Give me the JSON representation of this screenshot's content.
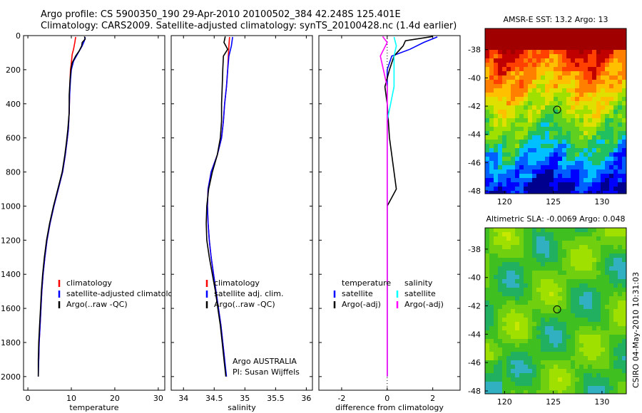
{
  "header": {
    "title_line1": "Argo profile: CS 5900350_190 29-Apr-2010 20100502_384 42.248S 125.401E",
    "title_line2": "Climatology: CARS2009. Satellite-adjusted climatology: synTS_20100428.nc (1.4d earlier)"
  },
  "side_label": "CSIRO 04-May-2010 10:31:03",
  "colors": {
    "climatology": "#ff0000",
    "satellite": "#0000ff",
    "argo": "#000000",
    "salinity_satellite": "#00ffff",
    "salinity_argo": "#ff00ff"
  },
  "chart_data": [
    {
      "type": "line",
      "xlabel": "temperature",
      "ylabel": "",
      "xlim": [
        -1,
        31.5
      ],
      "ylim": [
        2080,
        0
      ],
      "xticks": [
        0,
        10,
        20,
        30
      ],
      "yticks": [
        0,
        200,
        400,
        600,
        800,
        1000,
        1200,
        1400,
        1600,
        1800,
        2000
      ],
      "legend": {
        "position": "lower-right",
        "entries": [
          "climatology",
          "satellite-adjusted climatology",
          "Argo(..raw -QC)"
        ]
      },
      "series": [
        {
          "name": "climatology",
          "color": "#ff0000",
          "points": [
            [
              11.0,
              8
            ],
            [
              10.8,
              40
            ],
            [
              10.5,
              80
            ],
            [
              10.2,
              110
            ],
            [
              10.0,
              160
            ],
            [
              9.8,
              200
            ],
            [
              9.7,
              260
            ],
            [
              9.6,
              350
            ],
            [
              9.5,
              450
            ],
            [
              9.3,
              550
            ],
            [
              9.0,
              620
            ],
            [
              8.6,
              700
            ],
            [
              8.0,
              800
            ],
            [
              7.0,
              900
            ],
            [
              6.0,
              1000
            ],
            [
              5.1,
              1100
            ],
            [
              4.4,
              1200
            ],
            [
              3.9,
              1300
            ],
            [
              3.5,
              1400
            ],
            [
              3.2,
              1500
            ],
            [
              3.0,
              1600
            ],
            [
              2.8,
              1700
            ],
            [
              2.6,
              1800
            ],
            [
              2.5,
              1900
            ]
          ]
        },
        {
          "name": "satellite-adjusted climatology",
          "color": "#0000ff",
          "points": [
            [
              13.2,
              8
            ],
            [
              13.0,
              30
            ],
            [
              12.5,
              60
            ],
            [
              11.6,
              100
            ],
            [
              10.5,
              150
            ],
            [
              10.0,
              200
            ],
            [
              9.8,
              260
            ],
            [
              9.6,
              350
            ],
            [
              9.5,
              450
            ],
            [
              9.3,
              550
            ],
            [
              9.0,
              620
            ],
            [
              8.6,
              700
            ],
            [
              8.0,
              800
            ],
            [
              7.0,
              900
            ],
            [
              6.0,
              1000
            ],
            [
              5.1,
              1100
            ],
            [
              4.4,
              1200
            ],
            [
              3.9,
              1300
            ],
            [
              3.5,
              1400
            ],
            [
              3.2,
              1500
            ],
            [
              3.0,
              1600
            ],
            [
              2.8,
              1700
            ],
            [
              2.6,
              1800
            ],
            [
              2.5,
              1900
            ],
            [
              2.4,
              2000
            ]
          ]
        },
        {
          "name": "Argo(..raw -QC)",
          "color": "#000000",
          "points": [
            [
              13.0,
              5
            ],
            [
              13.2,
              20
            ],
            [
              12.5,
              40
            ],
            [
              12.4,
              60
            ],
            [
              11.8,
              90
            ],
            [
              11.0,
              120
            ],
            [
              10.2,
              160
            ],
            [
              9.9,
              200
            ],
            [
              9.7,
              260
            ],
            [
              9.5,
              350
            ],
            [
              9.5,
              450
            ],
            [
              9.2,
              550
            ],
            [
              8.9,
              620
            ],
            [
              8.5,
              700
            ],
            [
              7.9,
              800
            ],
            [
              6.9,
              900
            ],
            [
              5.9,
              1000
            ],
            [
              5.0,
              1100
            ],
            [
              4.3,
              1200
            ],
            [
              3.8,
              1300
            ],
            [
              3.4,
              1400
            ],
            [
              3.1,
              1500
            ],
            [
              2.9,
              1600
            ],
            [
              2.7,
              1700
            ],
            [
              2.5,
              1800
            ],
            [
              2.4,
              1900
            ],
            [
              2.4,
              2000
            ]
          ]
        }
      ]
    },
    {
      "type": "line",
      "xlabel": "salinity",
      "ylabel": "",
      "xlim": [
        33.8,
        36.1
      ],
      "ylim": [
        2080,
        0
      ],
      "xticks": [
        34,
        34.5,
        35,
        35.5,
        36
      ],
      "xtick_labels": [
        "34",
        "34.5",
        "35",
        "35.5",
        "36"
      ],
      "legend": {
        "position": "lower-right",
        "entries": [
          "climatology",
          "satellite adj. clim.",
          "Argo(..raw -QC)"
        ]
      },
      "annotation": [
        "Argo AUSTRALIA",
        "PI: Susan Wijffels"
      ],
      "series": [
        {
          "name": "climatology",
          "color": "#ff0000",
          "points": [
            [
              34.75,
              8
            ],
            [
              34.74,
              60
            ],
            [
              34.73,
              120
            ],
            [
              34.72,
              200
            ],
            [
              34.7,
              300
            ],
            [
              34.67,
              400
            ],
            [
              34.65,
              500
            ],
            [
              34.62,
              600
            ],
            [
              34.55,
              700
            ],
            [
              34.45,
              800
            ],
            [
              34.4,
              900
            ],
            [
              34.39,
              1000
            ],
            [
              34.4,
              1100
            ],
            [
              34.42,
              1200
            ],
            [
              34.45,
              1300
            ],
            [
              34.49,
              1400
            ],
            [
              34.53,
              1500
            ],
            [
              34.57,
              1600
            ],
            [
              34.61,
              1700
            ],
            [
              34.64,
              1800
            ],
            [
              34.67,
              1900
            ]
          ]
        },
        {
          "name": "satellite adj. clim.",
          "color": "#0000ff",
          "points": [
            [
              34.8,
              8
            ],
            [
              34.78,
              60
            ],
            [
              34.74,
              120
            ],
            [
              34.72,
              200
            ],
            [
              34.7,
              300
            ],
            [
              34.67,
              400
            ],
            [
              34.65,
              500
            ],
            [
              34.62,
              600
            ],
            [
              34.55,
              700
            ],
            [
              34.45,
              800
            ],
            [
              34.4,
              900
            ],
            [
              34.39,
              1000
            ],
            [
              34.4,
              1100
            ],
            [
              34.42,
              1200
            ],
            [
              34.45,
              1300
            ],
            [
              34.49,
              1400
            ],
            [
              34.53,
              1500
            ],
            [
              34.57,
              1600
            ],
            [
              34.61,
              1700
            ],
            [
              34.64,
              1800
            ],
            [
              34.67,
              1900
            ],
            [
              34.7,
              2000
            ]
          ]
        },
        {
          "name": "Argo(..raw -QC)",
          "color": "#000000",
          "points": [
            [
              34.68,
              5
            ],
            [
              34.66,
              40
            ],
            [
              34.72,
              80
            ],
            [
              34.65,
              120
            ],
            [
              34.64,
              200
            ],
            [
              34.63,
              300
            ],
            [
              34.62,
              400
            ],
            [
              34.62,
              500
            ],
            [
              34.6,
              600
            ],
            [
              34.55,
              700
            ],
            [
              34.47,
              800
            ],
            [
              34.41,
              900
            ],
            [
              34.38,
              1000
            ],
            [
              34.37,
              1100
            ],
            [
              34.38,
              1200
            ],
            [
              34.42,
              1300
            ],
            [
              34.47,
              1400
            ],
            [
              34.52,
              1500
            ],
            [
              34.56,
              1600
            ],
            [
              34.6,
              1700
            ],
            [
              34.63,
              1800
            ],
            [
              34.66,
              1900
            ],
            [
              34.69,
              2000
            ]
          ]
        }
      ]
    },
    {
      "type": "line",
      "xlabel": "difference from climatology",
      "ylabel": "",
      "xlim": [
        -3,
        3.2
      ],
      "ylim": [
        2080,
        0
      ],
      "xticks": [
        -2,
        0,
        2
      ],
      "legend": {
        "position": "lower-right",
        "groups": [
          {
            "title": "temperature",
            "entries": [
              "satellite",
              "Argo(-adj)"
            ]
          },
          {
            "title": "salinity",
            "entries": [
              "satellite",
              "Argo(-adj)"
            ]
          }
        ]
      },
      "series": [
        {
          "name": "satellite",
          "color": "#0000ff",
          "points": [
            [
              2.2,
              8
            ],
            [
              1.6,
              40
            ],
            [
              1.0,
              80
            ],
            [
              0.2,
              120
            ],
            [
              0,
              200
            ],
            [
              0,
              400
            ],
            [
              0,
              1000
            ],
            [
              0,
              1400
            ],
            [
              0,
              2000
            ]
          ]
        },
        {
          "name": "Argo(-adj)",
          "color": "#000000",
          "points": [
            [
              2.0,
              5
            ],
            [
              0.8,
              30
            ],
            [
              0.7,
              60
            ],
            [
              0.3,
              120
            ],
            [
              0.1,
              200
            ],
            [
              -0.1,
              300
            ],
            [
              0.0,
              400
            ],
            [
              0.1,
              600
            ],
            [
              0.3,
              800
            ],
            [
              0.4,
              900
            ],
            [
              0.0,
              1000
            ],
            [
              0.0,
              2000
            ]
          ]
        },
        {
          "name": "salinity satellite",
          "color": "#00ffff",
          "points": [
            [
              0.3,
              8
            ],
            [
              0.4,
              60
            ],
            [
              0.3,
              120
            ],
            [
              0.3,
              300
            ],
            [
              0,
              500
            ],
            [
              0,
              2000
            ]
          ]
        },
        {
          "name": "salinity Argo(-adj)",
          "color": "#ff00ff",
          "points": [
            [
              -0.2,
              5
            ],
            [
              0.0,
              40
            ],
            [
              -0.3,
              120
            ],
            [
              0.0,
              300
            ],
            [
              0,
              600
            ],
            [
              0,
              2000
            ]
          ]
        }
      ]
    },
    {
      "type": "heatmap",
      "title": "AMSR-E SST: 13.2 Argo: 13",
      "xlim": [
        118,
        132.5
      ],
      "ylim": [
        -48.2,
        -36.5
      ],
      "xticks": [
        120,
        125,
        130
      ],
      "yticks": [
        -38,
        -40,
        -42,
        -44,
        -46,
        -48
      ],
      "marker": {
        "lon": 125.401,
        "lat": -42.248
      }
    },
    {
      "type": "heatmap",
      "title": "Altimetric SLA: -0.0069 Argo: 0.048",
      "xlim": [
        118,
        132.5
      ],
      "ylim": [
        -48.2,
        -36.5
      ],
      "xticks": [
        120,
        125,
        130
      ],
      "yticks": [
        -38,
        -40,
        -42,
        -44,
        -46,
        -48
      ],
      "marker": {
        "lon": 125.401,
        "lat": -42.248
      }
    }
  ]
}
